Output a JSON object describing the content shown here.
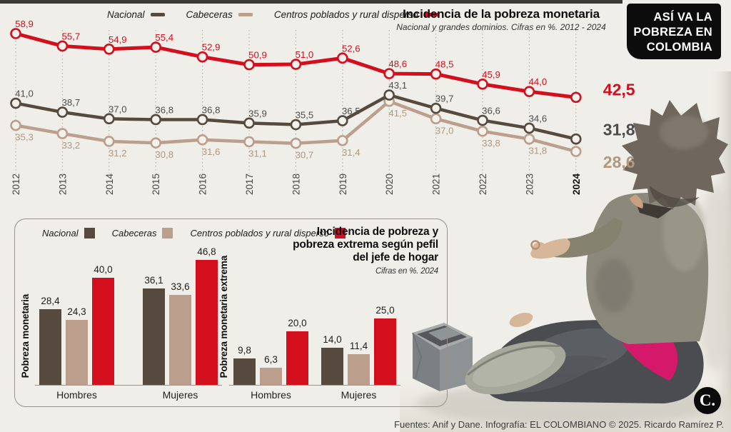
{
  "page": {
    "badge": {
      "lines": [
        "ASÍ VA LA",
        "POBREZA EN",
        "COLOMBIA"
      ],
      "bg": "#0c0c0c"
    },
    "footer": "Fuentes: Anif y Dane. Infografía: EL COLOMBIANO © 2025. Ricardo Ramírez P.",
    "logo_text": "C.",
    "background": "#efeee8",
    "accent_red": "#d30f1e"
  },
  "line_panel": {
    "title": "Incidencia de la pobreza monetaria",
    "subtitle": "Nacional y grandes dominios. Cifras en %. 2012 - 2024",
    "legend": [
      {
        "label": "Nacional",
        "color": "#564a3f"
      },
      {
        "label": "Cabeceras",
        "color": "#bb9e8b"
      },
      {
        "label": "Centros poblados y rural disperso",
        "color": "#d30f1e"
      }
    ]
  },
  "bar_panel": {
    "title_lines": [
      "Incidencia de pobreza y",
      "pobreza extrema según pefil",
      "del jefe de hogar"
    ],
    "subtitle": "Cifras en %. 2024",
    "legend": [
      {
        "label": "Nacional",
        "color": "#564a3f"
      },
      {
        "label": "Cabeceras",
        "color": "#bb9e8b"
      },
      {
        "label": "Centros poblados y rural disperso",
        "color": "#d30f1e"
      }
    ]
  },
  "chart_data": [
    {
      "type": "line",
      "title": "Incidencia de la pobreza monetaria",
      "subtitle": "Nacional y grandes dominios. Cifras en %. 2012 - 2024",
      "x": [
        2012,
        2013,
        2014,
        2015,
        2016,
        2017,
        2018,
        2019,
        2020,
        2021,
        2022,
        2023,
        2024
      ],
      "ylim": [
        28,
        59
      ],
      "grid": "vertical-dotted",
      "legend_position": "top",
      "series": [
        {
          "name": "Nacional",
          "color": "#564a3f",
          "label_color": "#4d4d4d",
          "values": [
            41.0,
            38.7,
            37.0,
            36.8,
            36.8,
            35.9,
            35.5,
            36.5,
            43.1,
            39.7,
            36.6,
            34.6,
            31.8
          ]
        },
        {
          "name": "Cabeceras",
          "color": "#bb9e8b",
          "label_color": "#b2977f",
          "values": [
            35.3,
            33.2,
            31.2,
            30.8,
            31.6,
            31.1,
            30.7,
            31.4,
            41.5,
            37.0,
            33.8,
            31.8,
            28.6
          ]
        },
        {
          "name": "Centros poblados y rural disperso",
          "color": "#d30f1e",
          "label_color": "#d30f1e",
          "values": [
            58.9,
            55.7,
            54.9,
            55.4,
            52.9,
            50.9,
            51.0,
            52.6,
            48.6,
            48.5,
            45.9,
            44.0,
            42.5
          ]
        }
      ]
    },
    {
      "type": "bar",
      "title": "Pobreza monetaria",
      "categories": [
        "Hombres",
        "Mujeres"
      ],
      "ylim": [
        0,
        50
      ],
      "series": [
        {
          "name": "Nacional",
          "color": "#564a3f",
          "values": [
            28.4,
            36.1
          ]
        },
        {
          "name": "Cabeceras",
          "color": "#bb9e8b",
          "values": [
            24.3,
            33.6
          ]
        },
        {
          "name": "Centros poblados y rural disperso",
          "color": "#d30f1e",
          "values": [
            40.0,
            46.8
          ]
        }
      ]
    },
    {
      "type": "bar",
      "title": "Pobreza monetaria extrema",
      "categories": [
        "Hombres",
        "Mujeres"
      ],
      "ylim": [
        0,
        50
      ],
      "series": [
        {
          "name": "Nacional",
          "color": "#564a3f",
          "values": [
            9.8,
            14.0
          ]
        },
        {
          "name": "Cabeceras",
          "color": "#bb9e8b",
          "values": [
            6.3,
            11.4
          ]
        },
        {
          "name": "Centros poblados y rural disperso",
          "color": "#d30f1e",
          "values": [
            20.0,
            25.0
          ]
        }
      ]
    }
  ]
}
